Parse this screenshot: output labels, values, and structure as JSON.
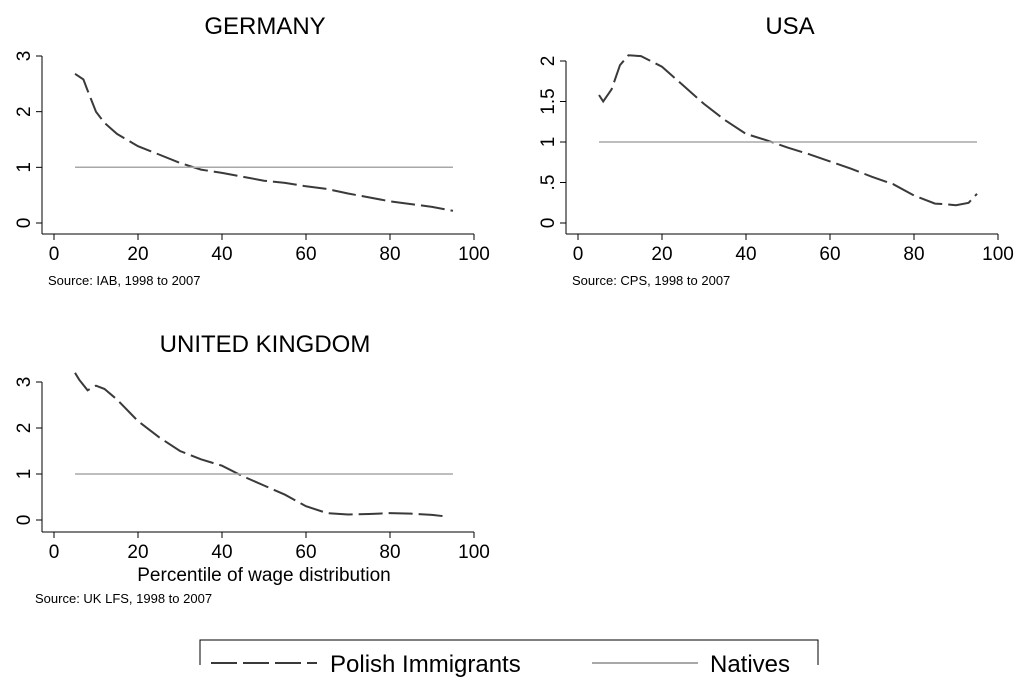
{
  "legend": {
    "entries": [
      {
        "label": "Polish Immigrants",
        "color": "#3a3a3a",
        "style": "dashed"
      },
      {
        "label": "Natives",
        "color": "#a8a8a8",
        "style": "solid"
      }
    ]
  },
  "chart_data": [
    {
      "type": "line",
      "title": "GERMANY",
      "note": "Source: IAB, 1998 to 2007",
      "xlabel": "",
      "ylabel": "",
      "xlim": [
        0,
        100
      ],
      "ylim": [
        0,
        3
      ],
      "xticks": [
        0,
        20,
        40,
        60,
        80,
        100
      ],
      "yticks": [
        0,
        1,
        2,
        3
      ],
      "yticklabels": [
        "0",
        "1",
        "2",
        "3"
      ],
      "grid": false,
      "series": [
        {
          "name": "Polish Immigrants",
          "style": "dashed",
          "color": "#3a3a3a",
          "x": [
            5,
            7,
            8,
            10,
            12,
            15,
            20,
            25,
            30,
            35,
            40,
            45,
            50,
            55,
            60,
            65,
            70,
            75,
            80,
            85,
            90,
            95
          ],
          "y": [
            2.68,
            2.58,
            2.38,
            2.0,
            1.8,
            1.6,
            1.38,
            1.23,
            1.08,
            0.96,
            0.9,
            0.83,
            0.76,
            0.72,
            0.66,
            0.61,
            0.53,
            0.46,
            0.39,
            0.34,
            0.29,
            0.22
          ]
        },
        {
          "name": "Natives",
          "style": "solid",
          "color": "#a8a8a8",
          "x": [
            5,
            95
          ],
          "y": [
            1.0,
            1.0
          ]
        }
      ]
    },
    {
      "type": "line",
      "title": "USA",
      "note": "Source: CPS, 1998 to 2007",
      "xlabel": "",
      "ylabel": "",
      "xlim": [
        0,
        100
      ],
      "ylim": [
        0,
        2
      ],
      "xticks": [
        0,
        20,
        40,
        60,
        80,
        100
      ],
      "yticks": [
        0,
        0.5,
        1,
        1.5,
        2
      ],
      "yticklabels": [
        "0",
        ".5",
        "1",
        "1.5",
        "2"
      ],
      "grid": false,
      "series": [
        {
          "name": "Polish Immigrants",
          "style": "dashed",
          "color": "#3a3a3a",
          "x": [
            5,
            6,
            8,
            10,
            12,
            15,
            20,
            25,
            30,
            35,
            40,
            45,
            50,
            55,
            60,
            65,
            70,
            75,
            80,
            85,
            88,
            90,
            93,
            95
          ],
          "y": [
            1.58,
            1.5,
            1.65,
            1.95,
            2.07,
            2.06,
            1.93,
            1.7,
            1.47,
            1.27,
            1.1,
            1.02,
            0.93,
            0.85,
            0.76,
            0.67,
            0.57,
            0.48,
            0.34,
            0.24,
            0.23,
            0.22,
            0.25,
            0.36
          ]
        },
        {
          "name": "Natives",
          "style": "solid",
          "color": "#a8a8a8",
          "x": [
            5,
            95
          ],
          "y": [
            1.0,
            1.0
          ]
        }
      ]
    },
    {
      "type": "line",
      "title": "UNITED KINGDOM",
      "note": "Source: UK LFS, 1998 to 2007",
      "xlabel": "Percentile of wage distribution",
      "ylabel": "",
      "xlim": [
        0,
        100
      ],
      "ylim": [
        0,
        3
      ],
      "xticks": [
        0,
        20,
        40,
        60,
        80,
        100
      ],
      "yticks": [
        0,
        1,
        2,
        3
      ],
      "yticklabels": [
        "0",
        "1",
        "2",
        "3"
      ],
      "grid": false,
      "series": [
        {
          "name": "Polish Immigrants",
          "style": "dashed",
          "color": "#3a3a3a",
          "x": [
            5,
            6,
            8,
            10,
            12,
            15,
            20,
            25,
            30,
            35,
            40,
            45,
            50,
            55,
            60,
            65,
            70,
            75,
            80,
            85,
            90,
            93
          ],
          "y": [
            3.2,
            3.05,
            2.82,
            2.92,
            2.85,
            2.62,
            2.15,
            1.8,
            1.5,
            1.32,
            1.18,
            0.95,
            0.75,
            0.55,
            0.3,
            0.15,
            0.12,
            0.13,
            0.15,
            0.14,
            0.11,
            0.08
          ]
        },
        {
          "name": "Natives",
          "style": "solid",
          "color": "#a8a8a8",
          "x": [
            5,
            95
          ],
          "y": [
            1.0,
            1.0
          ]
        }
      ]
    }
  ]
}
